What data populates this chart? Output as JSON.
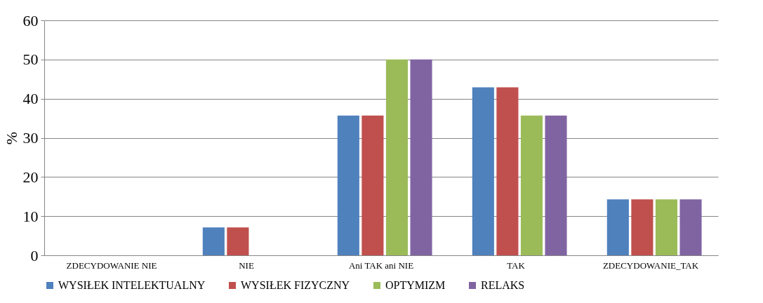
{
  "chart_data": {
    "type": "bar",
    "ylabel": "%",
    "categories": [
      "ZDECYDOWANIE NIE",
      "NIE",
      "Ani TAK ani NIE",
      "TAK",
      "ZDECYDOWANIE_TAK"
    ],
    "series": [
      {
        "name": "WYSIŁEK INTELEKTUALNY",
        "color": "#4f81bd",
        "values": [
          0,
          7.1,
          35.7,
          42.9,
          14.3
        ]
      },
      {
        "name": "WYSIŁEK FIZYCZNY",
        "color": "#c0504d",
        "values": [
          0,
          7.1,
          35.7,
          42.9,
          14.3
        ]
      },
      {
        "name": "OPTYMIZM",
        "color": "#9bbb59",
        "values": [
          0,
          0,
          50,
          35.7,
          14.3
        ]
      },
      {
        "name": "RELAKS",
        "color": "#8064a2",
        "values": [
          0,
          0,
          50,
          35.7,
          14.3
        ]
      }
    ],
    "ylim": [
      0,
      60
    ],
    "yticks": [
      0,
      10,
      20,
      30,
      40,
      50,
      60
    ],
    "grid": "y",
    "legend": "bottom"
  }
}
